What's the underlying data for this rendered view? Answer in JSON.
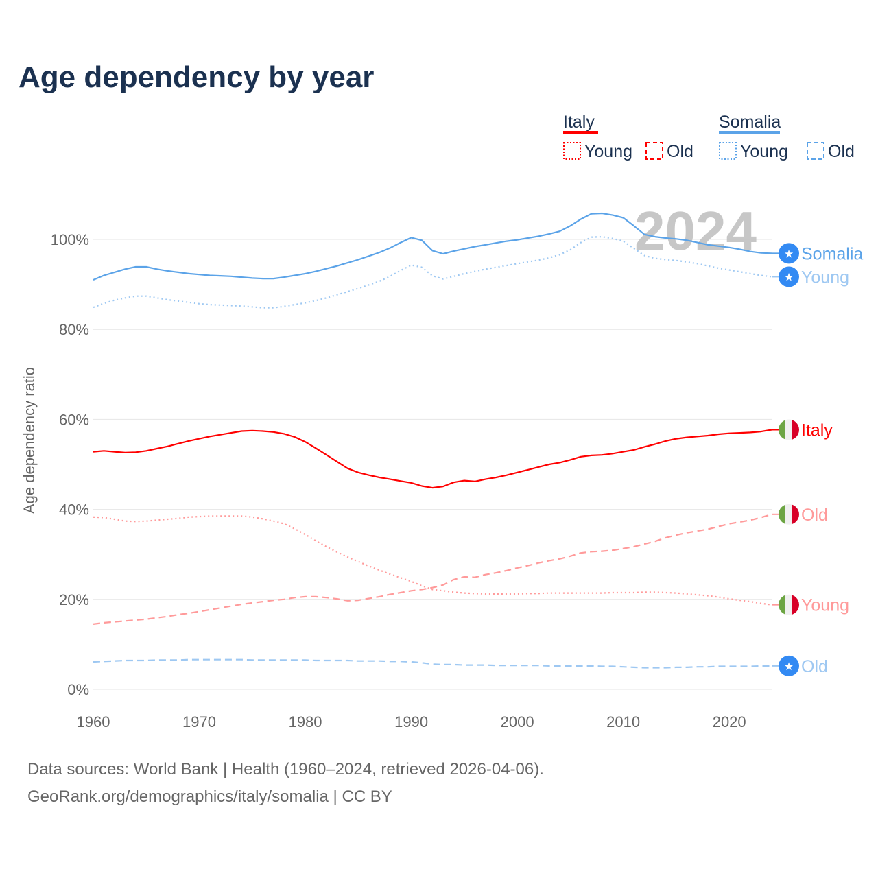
{
  "title": "Age dependency by year",
  "legend": {
    "groups": [
      {
        "name": "Italy",
        "color": "#ff0000",
        "light": "#ff9a9a",
        "items": [
          "Young",
          "Old"
        ]
      },
      {
        "name": "Somalia",
        "color": "#5ba3e8",
        "light": "#9ec8f2",
        "items": [
          "Young",
          "Old"
        ]
      }
    ]
  },
  "year_label": "2024",
  "footer": {
    "line1": "Data sources: World Bank | Health (1960–2024, retrieved 2026-04-06).",
    "line2": "GeoRank.org/demographics/italy/somalia | CC BY"
  },
  "chart_data": {
    "type": "line",
    "title": "Age dependency by year",
    "xlabel": "",
    "ylabel": "Age dependency ratio",
    "xlim": [
      1960,
      2024
    ],
    "ylim": [
      0,
      110
    ],
    "xticks": [
      1960,
      1970,
      1980,
      1990,
      2000,
      2010,
      2020
    ],
    "yticks": [
      0,
      20,
      40,
      60,
      80,
      100
    ],
    "ytick_labels": [
      "0%",
      "20%",
      "40%",
      "60%",
      "80%",
      "100%"
    ],
    "grid": true,
    "x_start": 1960,
    "series": [
      {
        "name": "Somalia",
        "end_label": "Somalia",
        "style": "solid",
        "color": "#5ba3e8",
        "label_color": "#5ba3e8",
        "marker": "star",
        "values": [
          91,
          92,
          92.7,
          93.4,
          93.9,
          93.9,
          93.4,
          93.0,
          92.7,
          92.4,
          92.2,
          92.0,
          91.9,
          91.8,
          91.6,
          91.4,
          91.3,
          91.3,
          91.6,
          92.0,
          92.4,
          92.9,
          93.5,
          94.1,
          94.8,
          95.5,
          96.3,
          97.1,
          98.1,
          99.3,
          100.4,
          99.8,
          97.5,
          96.8,
          97.4,
          97.9,
          98.4,
          98.8,
          99.2,
          99.6,
          99.9,
          100.3,
          100.7,
          101.2,
          101.8,
          103.0,
          104.5,
          105.7,
          105.8,
          105.4,
          104.8,
          103.0,
          101.1,
          100.6,
          100.3,
          100.1,
          99.8,
          99.3,
          98.8,
          98.5,
          98.2,
          97.8,
          97.3,
          97.0,
          96.9
        ]
      },
      {
        "name": "Somalia Young",
        "end_label": "Young",
        "style": "dotted",
        "color": "#9ec8f2",
        "label_color": "#9ec8f2",
        "marker": "star",
        "values": [
          84.9,
          85.8,
          86.5,
          87.0,
          87.4,
          87.4,
          87.0,
          86.6,
          86.3,
          86.0,
          85.7,
          85.5,
          85.4,
          85.3,
          85.2,
          85.0,
          84.8,
          84.8,
          85.1,
          85.5,
          85.9,
          86.4,
          87.0,
          87.7,
          88.4,
          89.1,
          89.9,
          90.7,
          91.8,
          93.1,
          94.3,
          93.8,
          91.9,
          91.2,
          91.8,
          92.4,
          92.9,
          93.4,
          93.8,
          94.2,
          94.6,
          95.0,
          95.4,
          95.9,
          96.6,
          97.7,
          99.3,
          100.5,
          100.6,
          100.2,
          99.6,
          98.0,
          96.4,
          95.8,
          95.5,
          95.3,
          95.0,
          94.6,
          94.1,
          93.6,
          93.2,
          92.8,
          92.4,
          92.0,
          91.7
        ]
      },
      {
        "name": "Italy",
        "end_label": "Italy",
        "style": "solid",
        "color": "#ff0000",
        "label_color": "#ff0000",
        "marker": "flag",
        "values": [
          52.8,
          53.0,
          52.8,
          52.6,
          52.7,
          53.0,
          53.5,
          54.0,
          54.6,
          55.2,
          55.7,
          56.2,
          56.6,
          57.0,
          57.4,
          57.5,
          57.4,
          57.2,
          56.8,
          56.1,
          55.0,
          53.6,
          52.1,
          50.6,
          49.1,
          48.2,
          47.6,
          47.1,
          46.7,
          46.3,
          45.9,
          45.2,
          44.8,
          45.1,
          46.0,
          46.4,
          46.2,
          46.7,
          47.1,
          47.6,
          48.2,
          48.8,
          49.4,
          50.0,
          50.4,
          51.0,
          51.7,
          52.0,
          52.1,
          52.4,
          52.8,
          53.2,
          53.9,
          54.5,
          55.2,
          55.7,
          56.0,
          56.2,
          56.4,
          56.7,
          56.9,
          57.0,
          57.1,
          57.3,
          57.7
        ]
      },
      {
        "name": "Italy Old",
        "end_label": "Old",
        "style": "dashed",
        "color": "#ff9a9a",
        "label_color": "#ff9a9a",
        "marker": "flag",
        "values": [
          14.5,
          14.8,
          15.0,
          15.2,
          15.4,
          15.6,
          15.9,
          16.2,
          16.6,
          16.9,
          17.3,
          17.7,
          18.1,
          18.5,
          18.9,
          19.2,
          19.5,
          19.8,
          20.0,
          20.4,
          20.6,
          20.6,
          20.4,
          20.1,
          19.7,
          19.8,
          20.2,
          20.6,
          21.1,
          21.5,
          21.9,
          22.2,
          22.6,
          23.2,
          24.4,
          25.0,
          24.9,
          25.5,
          25.9,
          26.4,
          27.0,
          27.5,
          28.1,
          28.6,
          29.0,
          29.6,
          30.3,
          30.6,
          30.7,
          30.9,
          31.3,
          31.7,
          32.3,
          32.9,
          33.7,
          34.3,
          34.8,
          35.2,
          35.6,
          36.2,
          36.8,
          37.2,
          37.6,
          38.2,
          38.9
        ]
      },
      {
        "name": "Italy Young",
        "end_label": "Young",
        "style": "dotted",
        "color": "#ff9a9a",
        "label_color": "#ff9a9a",
        "marker": "flag",
        "values": [
          38.3,
          38.2,
          37.8,
          37.4,
          37.3,
          37.4,
          37.6,
          37.8,
          38.0,
          38.3,
          38.4,
          38.5,
          38.5,
          38.5,
          38.5,
          38.3,
          37.9,
          37.4,
          36.8,
          35.7,
          34.4,
          33.0,
          31.7,
          30.5,
          29.4,
          28.4,
          27.4,
          26.5,
          25.6,
          24.8,
          24.0,
          23.0,
          22.2,
          21.9,
          21.6,
          21.4,
          21.3,
          21.2,
          21.2,
          21.2,
          21.2,
          21.3,
          21.3,
          21.4,
          21.4,
          21.4,
          21.4,
          21.4,
          21.4,
          21.5,
          21.5,
          21.5,
          21.6,
          21.6,
          21.5,
          21.4,
          21.2,
          21.0,
          20.8,
          20.5,
          20.1,
          19.8,
          19.5,
          19.1,
          18.8
        ]
      },
      {
        "name": "Somalia Old",
        "end_label": "Old",
        "style": "dashed",
        "color": "#9ec8f2",
        "label_color": "#9ec8f2",
        "marker": "star",
        "values": [
          6.1,
          6.2,
          6.3,
          6.4,
          6.4,
          6.4,
          6.5,
          6.5,
          6.5,
          6.6,
          6.6,
          6.6,
          6.6,
          6.6,
          6.6,
          6.5,
          6.5,
          6.5,
          6.5,
          6.5,
          6.5,
          6.4,
          6.4,
          6.4,
          6.4,
          6.3,
          6.3,
          6.3,
          6.2,
          6.2,
          6.1,
          5.9,
          5.6,
          5.5,
          5.5,
          5.4,
          5.4,
          5.4,
          5.3,
          5.3,
          5.3,
          5.3,
          5.3,
          5.2,
          5.2,
          5.2,
          5.2,
          5.2,
          5.1,
          5.1,
          5.0,
          4.9,
          4.8,
          4.8,
          4.8,
          4.9,
          4.9,
          5.0,
          5.0,
          5.1,
          5.1,
          5.1,
          5.1,
          5.2,
          5.2
        ]
      }
    ]
  }
}
